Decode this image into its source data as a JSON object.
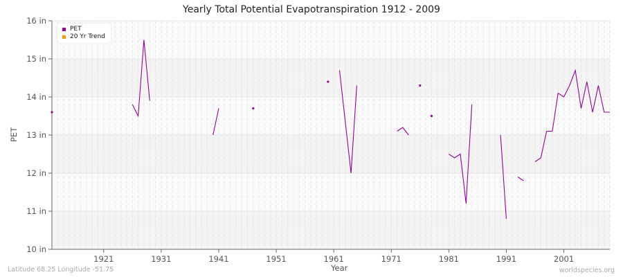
{
  "chart_data": {
    "type": "line",
    "title": "Yearly Total Potential Evapotranspiration 1912 - 2009",
    "xlabel": "Year",
    "ylabel": "PET",
    "xlim": [
      1912,
      2009
    ],
    "ylim": [
      10,
      16
    ],
    "y_ticks": [
      "10 in",
      "11 in",
      "12 in",
      "13 in",
      "14 in",
      "15 in",
      "16 in"
    ],
    "x_ticks": [
      "1921",
      "1931",
      "1941",
      "1951",
      "1961",
      "1971",
      "1981",
      "1991",
      "2001"
    ],
    "grid": true,
    "legend_position": "top-left",
    "legend": [
      {
        "label": "PET",
        "color": "#990099"
      },
      {
        "label": "20 Yr Trend",
        "color": "#ff9900"
      }
    ],
    "series": [
      {
        "name": "PET",
        "color": "#990099",
        "segments": [
          [
            [
              1912,
              13.6
            ]
          ],
          [
            [
              1926,
              13.8
            ],
            [
              1927,
              13.5
            ],
            [
              1928,
              15.5
            ],
            [
              1929,
              13.9
            ]
          ],
          [
            [
              1940,
              13.0
            ],
            [
              1941,
              13.7
            ]
          ],
          [
            [
              1947,
              13.7
            ]
          ],
          [
            [
              1960,
              14.4
            ]
          ],
          [
            [
              1962,
              14.7
            ],
            [
              1964,
              12.0
            ],
            [
              1965,
              14.3
            ]
          ],
          [
            [
              1972,
              13.1
            ],
            [
              1973,
              13.2
            ],
            [
              1974,
              13.0
            ]
          ],
          [
            [
              1976,
              14.3
            ]
          ],
          [
            [
              1978,
              13.5
            ]
          ],
          [
            [
              1981,
              12.5
            ],
            [
              1982,
              12.4
            ],
            [
              1983,
              12.5
            ],
            [
              1984,
              11.2
            ],
            [
              1985,
              13.8
            ]
          ],
          [
            [
              1990,
              13.0
            ],
            [
              1991,
              10.8
            ]
          ],
          [
            [
              1993,
              11.9
            ],
            [
              1994,
              11.8
            ]
          ],
          [
            [
              1996,
              12.3
            ],
            [
              1997,
              12.4
            ],
            [
              1998,
              13.1
            ],
            [
              1999,
              13.1
            ],
            [
              2000,
              14.1
            ],
            [
              2001,
              14.0
            ],
            [
              2002,
              14.3
            ],
            [
              2003,
              14.7
            ],
            [
              2004,
              13.7
            ],
            [
              2005,
              14.4
            ],
            [
              2006,
              13.6
            ],
            [
              2007,
              14.3
            ],
            [
              2008,
              13.6
            ],
            [
              2009,
              13.6
            ]
          ]
        ]
      },
      {
        "name": "20 Yr Trend",
        "color": "#ff9900",
        "segments": []
      }
    ]
  },
  "footer": {
    "location": "Latitude 68.25 Longitude -51.75",
    "source": "worldspecies.org"
  }
}
